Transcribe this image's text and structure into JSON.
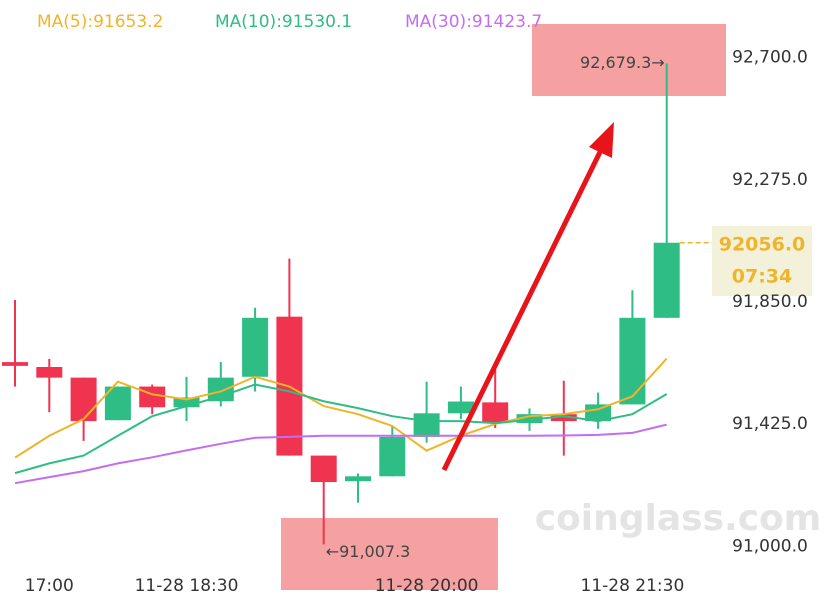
{
  "chart_data": {
    "type": "candlestick",
    "categories": [
      null,
      "17:00",
      null,
      null,
      null,
      "11-28 18:30",
      null,
      null,
      null,
      null,
      null,
      null,
      "11-28 20:00",
      null,
      null,
      null,
      null,
      null,
      "11-28 21:30",
      null
    ],
    "open": [
      91641,
      91624,
      91587,
      91439,
      91556,
      91484,
      91505,
      91590,
      91799,
      91316,
      91227,
      91244,
      91381,
      91463,
      91501,
      91429,
      91460,
      91436,
      91494,
      91795
    ],
    "high": [
      91857,
      91652,
      91587,
      91556,
      91563,
      91590,
      91641,
      91830,
      92001,
      91316,
      91254,
      91419,
      91573,
      91556,
      91624,
      91480,
      91576,
      91535,
      91891,
      92679.3
    ],
    "low": [
      91556,
      91467,
      91367,
      91439,
      91460,
      91436,
      91487,
      91539,
      91316,
      91007.3,
      91152,
      91244,
      91361,
      91443,
      91412,
      91402,
      91316,
      91409,
      91494,
      91795
    ],
    "close": [
      91628,
      91587,
      91436,
      91556,
      91484,
      91518,
      91587,
      91795,
      91316,
      91224,
      91244,
      91381,
      91463,
      91504,
      91429,
      91460,
      91436,
      91494,
      91795,
      92056
    ],
    "up_color": "#2ebd85",
    "down_color": "#f0344f",
    "series": [
      {
        "name": "MA(5):91653.2",
        "color": "#f0b429",
        "values": [
          91309,
          91385,
          91443,
          91573,
          91529,
          91511,
          91539,
          91590,
          91556,
          91488,
          91460,
          91419,
          91333,
          91385,
          91426,
          91453,
          91460,
          91477,
          91522,
          91653.2
        ]
      },
      {
        "name": "MA(10):91530.1",
        "color": "#2ebd85",
        "values": [
          91255,
          91289,
          91316,
          91385,
          91453,
          91488,
          91522,
          91563,
          91539,
          91505,
          91481,
          91453,
          91436,
          91436,
          91429,
          91440,
          91453,
          91436,
          91460,
          91530.1
        ]
      },
      {
        "name": "MA(30):91423.7",
        "color": "#c36ef2",
        "values": [
          91220,
          91241,
          91262,
          91289,
          91310,
          91334,
          91357,
          91378,
          91381,
          91385,
          91385,
          91385,
          91385,
          91385,
          91385,
          91385,
          91386,
          91388,
          91395,
          91423.7
        ]
      }
    ],
    "ylim": [
      90800,
      92900
    ],
    "yticks": [
      {
        "value": 92700,
        "label": "92,700.0"
      },
      {
        "value": 92275,
        "label": "92,275.0"
      },
      {
        "value": 91850,
        "label": "91,850.0"
      },
      {
        "value": 91425,
        "label": "91,425.0"
      },
      {
        "value": 91000,
        "label": "91,000.0"
      }
    ],
    "grid": false,
    "high_label": "92,679.3→",
    "low_label": "←91,007.3",
    "last_price": {
      "value": 92056.0,
      "label": "92056.0"
    },
    "countdown": "07:34",
    "watermark": "coinglass.com"
  }
}
